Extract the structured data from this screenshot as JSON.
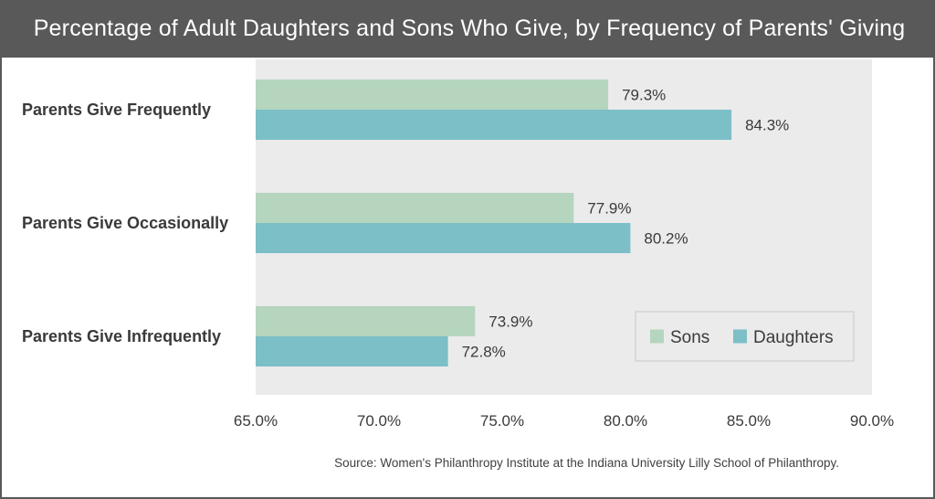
{
  "title": "Percentage of Adult Daughters and Sons Who Give, by Frequency of Parents' Giving",
  "source": "Source: Women's Philanthropy Institute at the Indiana University Lilly School of Philanthropy.",
  "colors": {
    "sons": "#b5d5be",
    "daughters": "#7cbfc7",
    "plot_bg": "#ebebeb",
    "title_bg": "#595959"
  },
  "chart_data": {
    "type": "bar",
    "orientation": "horizontal",
    "title": "Percentage of Adult Daughters and Sons Who Give, by Frequency of Parents' Giving",
    "categories": [
      "Parents Give Frequently",
      "Parents Give Occasionally",
      "Parents Give Infrequently"
    ],
    "series": [
      {
        "name": "Sons",
        "values": [
          79.3,
          77.9,
          73.9
        ],
        "labels": [
          "79.3%",
          "77.9%",
          "73.9%"
        ]
      },
      {
        "name": "Daughters",
        "values": [
          84.3,
          80.2,
          72.8
        ],
        "labels": [
          "84.3%",
          "80.2%",
          "72.8%"
        ]
      }
    ],
    "xlim": [
      65,
      90
    ],
    "xticks": [
      "65.0%",
      "70.0%",
      "75.0%",
      "80.0%",
      "85.0%",
      "90.0%"
    ],
    "legend": "bottom-right",
    "grid": false
  }
}
